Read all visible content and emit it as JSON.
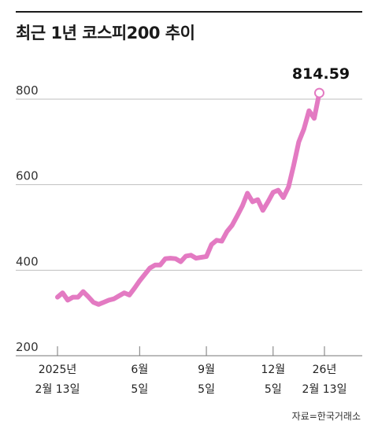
{
  "title": "최근 1년 코스피200 추이",
  "source": "자료=한국거래소",
  "colors": {
    "line": "#e37ac2",
    "grid": "#bfbfbf",
    "text": "#222222"
  },
  "chart_data": {
    "type": "line",
    "title": "최근 1년 코스피200 추이",
    "ylim": [
      200,
      850
    ],
    "yticks": [
      200,
      400,
      600,
      800
    ],
    "xlim": [
      0,
      52
    ],
    "xticks": [
      {
        "x": 0,
        "line1": "2025년",
        "line2": "2월 13일"
      },
      {
        "x": 16,
        "line1": "6월",
        "line2": "5일"
      },
      {
        "x": 29,
        "line1": "9월",
        "line2": "5일"
      },
      {
        "x": 42,
        "line1": "12월",
        "line2": "5일"
      },
      {
        "x": 52,
        "line1": "26년",
        "line2": "2월 13일"
      }
    ],
    "grid": true,
    "last_label": "814.59",
    "series": [
      {
        "values": [
          [
            0,
            337
          ],
          [
            1,
            347
          ],
          [
            2,
            330
          ],
          [
            3,
            337
          ],
          [
            4,
            337
          ],
          [
            5,
            350
          ],
          [
            6,
            338
          ],
          [
            7,
            325
          ],
          [
            8,
            320
          ],
          [
            9,
            325
          ],
          [
            10,
            330
          ],
          [
            11,
            333
          ],
          [
            12,
            340
          ],
          [
            13,
            347
          ],
          [
            14,
            342
          ],
          [
            15,
            358
          ],
          [
            16,
            375
          ],
          [
            17,
            390
          ],
          [
            18,
            405
          ],
          [
            19,
            412
          ],
          [
            20,
            412
          ],
          [
            21,
            427
          ],
          [
            22,
            428
          ],
          [
            23,
            427
          ],
          [
            24,
            420
          ],
          [
            25,
            433
          ],
          [
            26,
            435
          ],
          [
            27,
            428
          ],
          [
            28,
            430
          ],
          [
            29,
            432
          ],
          [
            30,
            460
          ],
          [
            31,
            470
          ],
          [
            32,
            468
          ],
          [
            33,
            490
          ],
          [
            34,
            505
          ],
          [
            35,
            527
          ],
          [
            36,
            550
          ],
          [
            37,
            580
          ],
          [
            38,
            560
          ],
          [
            39,
            565
          ],
          [
            40,
            540
          ],
          [
            41,
            560
          ],
          [
            42,
            582
          ],
          [
            43,
            587
          ],
          [
            44,
            570
          ],
          [
            45,
            595
          ],
          [
            46,
            645
          ],
          [
            47,
            700
          ],
          [
            48,
            730
          ],
          [
            49,
            773
          ],
          [
            50,
            755
          ],
          [
            51,
            814.59
          ]
        ]
      }
    ]
  }
}
